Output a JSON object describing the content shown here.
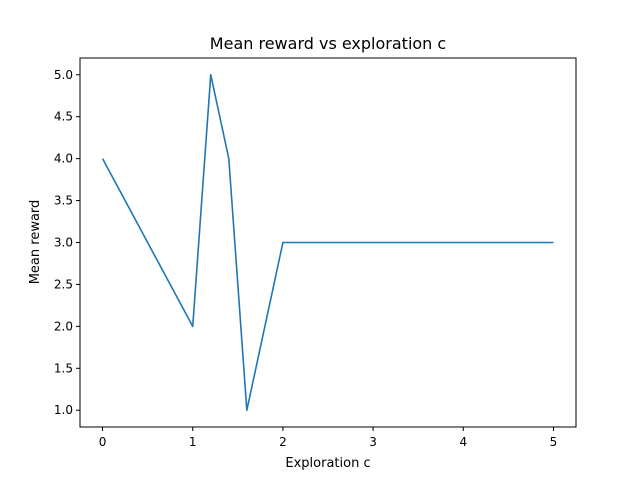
{
  "chart_data": {
    "type": "line",
    "title": "Mean reward vs exploration c",
    "xlabel": "Exploration c",
    "ylabel": "Mean reward",
    "xlim": [
      -0.25,
      5.25
    ],
    "ylim": [
      0.8,
      5.2
    ],
    "x_ticks": [
      "0",
      "1",
      "2",
      "3",
      "4",
      "5"
    ],
    "y_ticks": [
      "1.0",
      "1.5",
      "2.0",
      "2.5",
      "3.0",
      "3.5",
      "4.0",
      "4.5",
      "5.0"
    ],
    "grid": false,
    "legend": "none",
    "series": [
      {
        "color": "#1f77b4",
        "x": [
          0,
          1,
          1.2,
          1.4,
          1.6,
          2,
          3,
          4,
          5
        ],
        "y": [
          4,
          2,
          5,
          4,
          1,
          3,
          3,
          3,
          3
        ]
      }
    ]
  }
}
